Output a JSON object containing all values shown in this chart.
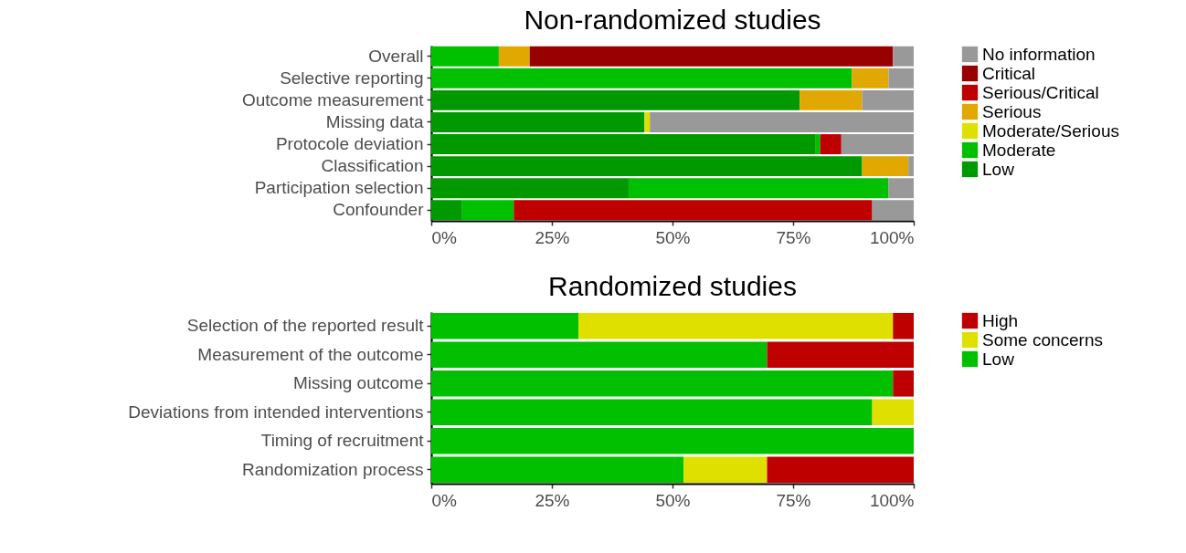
{
  "chart_data": [
    {
      "type": "bar",
      "title": "Non-randomized studies",
      "orientation": "horizontal",
      "stacked": true,
      "legend": "right",
      "categories": [
        "Overall",
        "Selective reporting",
        "Outcome measurement",
        "Missing data",
        "Protocole deviation",
        "Classification",
        "Participation selection",
        "Confounder"
      ],
      "series": [
        {
          "name": "Low",
          "color": "#009900",
          "values": [
            null,
            null,
            76.4,
            44.2,
            79.7,
            89.3,
            40.9,
            6.4
          ]
        },
        {
          "name": "Moderate",
          "color": "#00c000",
          "values": [
            14.0,
            87.2,
            null,
            null,
            0.9,
            null,
            53.9,
            10.7
          ]
        },
        {
          "name": "Moderate/Serious",
          "color": "#e0e000",
          "values": [
            null,
            null,
            null,
            1.1,
            null,
            null,
            null,
            null
          ]
        },
        {
          "name": "Serious",
          "color": "#e0a800",
          "values": [
            6.4,
            7.6,
            12.9,
            null,
            null,
            9.6,
            null,
            null
          ]
        },
        {
          "name": "Serious/Critical",
          "color": "#bf0000",
          "values": [
            null,
            null,
            null,
            null,
            4.4,
            null,
            null,
            74.3
          ]
        },
        {
          "name": "Critical",
          "color": "#990000",
          "values": [
            75.3,
            null,
            null,
            null,
            null,
            null,
            null,
            null
          ]
        },
        {
          "name": "No information",
          "color": "#999999",
          "values": [
            4.3,
            5.2,
            10.7,
            54.7,
            15.0,
            1.1,
            5.2,
            8.6
          ]
        }
      ],
      "xlim": [
        0,
        100
      ],
      "xticks": [
        {
          "value": 0,
          "label": "0%"
        },
        {
          "value": 25,
          "label": "25%"
        },
        {
          "value": 50,
          "label": "50%"
        },
        {
          "value": 75,
          "label": "75%"
        },
        {
          "value": 100,
          "label": "100%"
        }
      ]
    },
    {
      "type": "bar",
      "title": "Randomized studies",
      "orientation": "horizontal",
      "stacked": true,
      "legend": "right",
      "categories": [
        "Selection of the reported result",
        "Measurement of the outcome",
        "Missing outcome",
        "Deviations from intended interventions",
        "Timing of recruitment",
        "Randomization process"
      ],
      "series": [
        {
          "name": "Low",
          "color": "#00c000",
          "values": [
            30.5,
            69.6,
            95.7,
            91.4,
            100,
            52.3
          ]
        },
        {
          "name": "Some concerns",
          "color": "#e0e000",
          "values": [
            65.2,
            null,
            null,
            8.6,
            null,
            17.3
          ]
        },
        {
          "name": "High",
          "color": "#bf0000",
          "values": [
            4.3,
            30.4,
            4.3,
            null,
            null,
            30.4
          ]
        }
      ],
      "xlim": [
        0,
        100
      ],
      "xticks": [
        {
          "value": 0,
          "label": "0%"
        },
        {
          "value": 25,
          "label": "25%"
        },
        {
          "value": 50,
          "label": "50%"
        },
        {
          "value": 75,
          "label": "75%"
        },
        {
          "value": 100,
          "label": "100%"
        }
      ]
    }
  ]
}
